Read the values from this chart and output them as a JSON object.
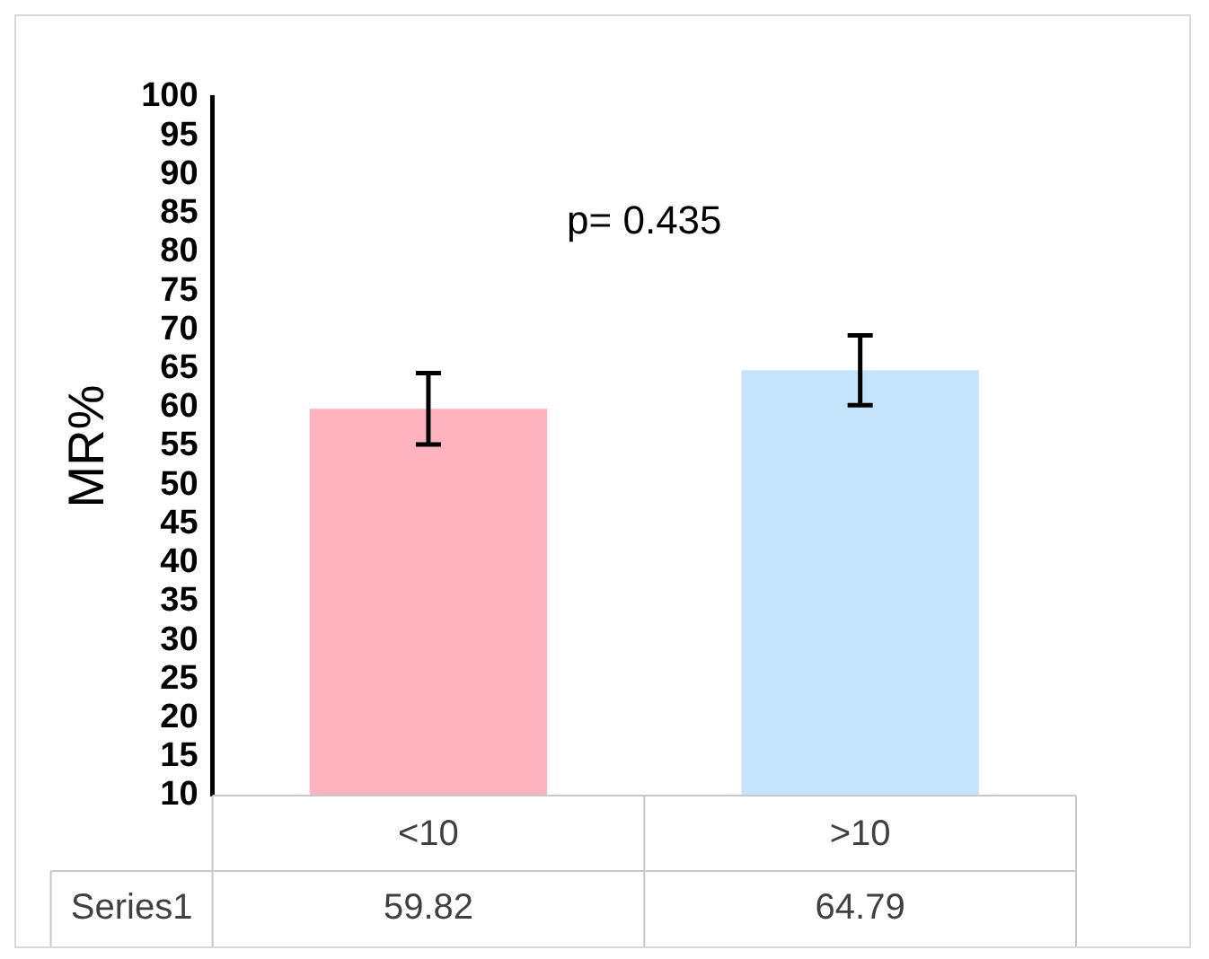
{
  "chart_data": {
    "type": "bar",
    "ylabel": "MR%",
    "categories": [
      "<10",
      ">10"
    ],
    "series": [
      {
        "name": "Series1",
        "values": [
          59.82,
          64.79
        ],
        "colors": [
          "#ffb3be",
          "#c5e3fb"
        ],
        "errors": [
          4.6,
          4.5
        ]
      }
    ],
    "ylim": [
      10,
      100
    ],
    "yticks": [
      10,
      15,
      20,
      25,
      30,
      35,
      40,
      45,
      50,
      55,
      60,
      65,
      70,
      75,
      80,
      85,
      90,
      95,
      100
    ],
    "grid": false,
    "legend": false,
    "data_labels": true,
    "annotations": [
      "p= 0.435"
    ]
  }
}
